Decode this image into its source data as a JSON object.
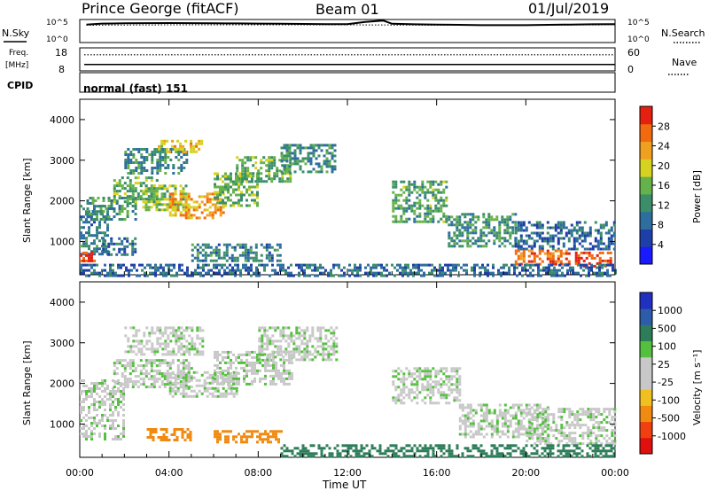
{
  "header": {
    "station": "Prince George (fitACF)",
    "beam": "Beam 01",
    "date": "01/Jul/2019"
  },
  "strips": {
    "nsky_label": "N.Sky",
    "nsearch_label": "N.Search",
    "noise_ticks": [
      "10^5",
      "10^0"
    ],
    "freq_label": "Freq.",
    "freq_unit": "[MHz]",
    "freq_ticks": [
      "18",
      "8"
    ],
    "nave_label": "Nave",
    "nave_ticks": [
      "60",
      "0"
    ],
    "cpid_label": "CPID",
    "cpid_value": "normal (fast) 151"
  },
  "axes": {
    "xlabel": "Time UT",
    "x_ticks": [
      "00:00",
      "04:00",
      "08:00",
      "12:00",
      "16:00",
      "20:00",
      "00:00"
    ],
    "ylabel": "Slant Range [km]",
    "y_ticks": [
      "1000",
      "2000",
      "3000",
      "4000"
    ]
  },
  "colorbars": {
    "power": {
      "label": "Power [dB]",
      "ticks": [
        "4",
        "8",
        "12",
        "16",
        "20",
        "24",
        "28"
      ],
      "colors": [
        "#1a1aff",
        "#1f3fa8",
        "#2e6e9e",
        "#3c8e6a",
        "#66b24a",
        "#d7d21f",
        "#f0a020",
        "#f06a10",
        "#e52010"
      ]
    },
    "velocity": {
      "label": "Velocity [m s⁻¹]",
      "ticks": [
        "1000",
        "500",
        "100",
        "25",
        "-25",
        "-100",
        "-500",
        "-1000"
      ],
      "colors": [
        "#2030c0",
        "#2d5da8",
        "#2e7d5a",
        "#55c040",
        "#c8c8c8",
        "#c8c8c8",
        "#f0c020",
        "#f08a10",
        "#f04010",
        "#e01010"
      ]
    }
  },
  "chart_data": [
    {
      "type": "line",
      "title": "N.Sky / N.Search",
      "x_range_hours": [
        0,
        24
      ],
      "y_scale": "log",
      "ylim": [
        1,
        100000
      ],
      "series": [
        {
          "name": "N.Sky",
          "x": [
            0.3,
            1,
            2,
            3,
            4,
            5,
            6,
            7,
            8,
            9,
            10,
            11,
            12,
            12.8,
            13.6,
            14,
            15,
            16,
            17,
            18,
            19,
            20,
            21,
            22,
            23,
            24
          ],
          "y": [
            8000,
            13000,
            15000,
            16000,
            17000,
            16000,
            15000,
            14000,
            13000,
            12000,
            11000,
            10000,
            10000,
            30000,
            60000,
            12000,
            9000,
            8000,
            7000,
            6000,
            6000,
            6000,
            7000,
            8000,
            9000,
            10000
          ]
        },
        {
          "name": "N.Search",
          "x": [
            0.3,
            4,
            8,
            12,
            16,
            20,
            24
          ],
          "y": [
            6000,
            7000,
            7000,
            7000,
            6000,
            6000,
            7000
          ]
        }
      ]
    },
    {
      "type": "line",
      "title": "Freq. / Nave",
      "x_range_hours": [
        0,
        24
      ],
      "series": [
        {
          "name": "Freq.",
          "unit": "MHz",
          "x": [
            0.2,
            24
          ],
          "y": [
            10.8,
            10.8
          ]
        },
        {
          "name": "Nave",
          "x": [
            0.2,
            24
          ],
          "y": [
            42,
            42
          ]
        }
      ]
    },
    {
      "type": "heatmap",
      "title": "Power",
      "x_range_hours": [
        0,
        24
      ],
      "ylim": [
        180,
        4500
      ],
      "value_unit": "dB",
      "value_range": [
        0,
        30
      ],
      "regions": [
        {
          "t": [
            0.0,
            1.2
          ],
          "r": [
            700,
            1900
          ],
          "v": 10
        },
        {
          "t": [
            0.3,
            2.5
          ],
          "r": [
            1550,
            2100
          ],
          "v": 12
        },
        {
          "t": [
            1.5,
            3.5
          ],
          "r": [
            2000,
            2600
          ],
          "v": 14
        },
        {
          "t": [
            2.0,
            4.8
          ],
          "r": [
            2700,
            3300
          ],
          "v": 11
        },
        {
          "t": [
            3.5,
            5.5
          ],
          "r": [
            3200,
            3500
          ],
          "v": 20
        },
        {
          "t": [
            2.8,
            4.8
          ],
          "r": [
            1800,
            2400
          ],
          "v": 16
        },
        {
          "t": [
            4.0,
            6.5
          ],
          "r": [
            1600,
            2200
          ],
          "v": 22
        },
        {
          "t": [
            6.0,
            8.0
          ],
          "r": [
            1900,
            2700
          ],
          "v": 14
        },
        {
          "t": [
            7.0,
            9.5
          ],
          "r": [
            2500,
            3100
          ],
          "v": 14
        },
        {
          "t": [
            9.0,
            11.5
          ],
          "r": [
            2700,
            3400
          ],
          "v": 11
        },
        {
          "t": [
            0.0,
            0.7
          ],
          "r": [
            500,
            750
          ],
          "v": 28
        },
        {
          "t": [
            1.0,
            2.5
          ],
          "r": [
            700,
            1100
          ],
          "v": 9
        },
        {
          "t": [
            5.0,
            9.0
          ],
          "r": [
            500,
            950
          ],
          "v": 10
        },
        {
          "t": [
            14.0,
            16.5
          ],
          "r": [
            1500,
            2500
          ],
          "v": 13
        },
        {
          "t": [
            16.5,
            19.5
          ],
          "r": [
            900,
            1700
          ],
          "v": 12
        },
        {
          "t": [
            19.5,
            24.0
          ],
          "r": [
            800,
            1500
          ],
          "v": 8
        },
        {
          "t": [
            19.5,
            22.0
          ],
          "r": [
            450,
            800
          ],
          "v": 25
        },
        {
          "t": [
            22.2,
            23.8
          ],
          "r": [
            400,
            750
          ],
          "v": 27
        },
        {
          "t": [
            0.0,
            24.0
          ],
          "r": [
            180,
            450
          ],
          "v": 8
        }
      ]
    },
    {
      "type": "heatmap",
      "title": "Velocity",
      "x_range_hours": [
        0,
        24
      ],
      "ylim": [
        180,
        4500
      ],
      "value_unit": "m s^-1",
      "value_range": [
        -1000,
        1000
      ],
      "regions": [
        {
          "t": [
            0.0,
            2.0
          ],
          "r": [
            600,
            2100
          ],
          "v": 0
        },
        {
          "t": [
            1.5,
            5.0
          ],
          "r": [
            1900,
            2600
          ],
          "v": 0
        },
        {
          "t": [
            2.0,
            5.5
          ],
          "r": [
            2700,
            3400
          ],
          "v": 0
        },
        {
          "t": [
            4.0,
            7.0
          ],
          "r": [
            1700,
            2300
          ],
          "v": 0
        },
        {
          "t": [
            6.0,
            9.5
          ],
          "r": [
            2000,
            2800
          ],
          "v": 0
        },
        {
          "t": [
            8.0,
            11.5
          ],
          "r": [
            2600,
            3400
          ],
          "v": 0
        },
        {
          "t": [
            3.0,
            5.0
          ],
          "r": [
            600,
            900
          ],
          "v": -300
        },
        {
          "t": [
            6.0,
            9.0
          ],
          "r": [
            550,
            850
          ],
          "v": -300
        },
        {
          "t": [
            14.0,
            17.0
          ],
          "r": [
            1500,
            2400
          ],
          "v": 0
        },
        {
          "t": [
            17.0,
            21.0
          ],
          "r": [
            700,
            1500
          ],
          "v": 0
        },
        {
          "t": [
            20.0,
            24.0
          ],
          "r": [
            500,
            1400
          ],
          "v": 0
        },
        {
          "t": [
            9.0,
            24.0
          ],
          "r": [
            180,
            500
          ],
          "v": 60
        }
      ]
    }
  ]
}
